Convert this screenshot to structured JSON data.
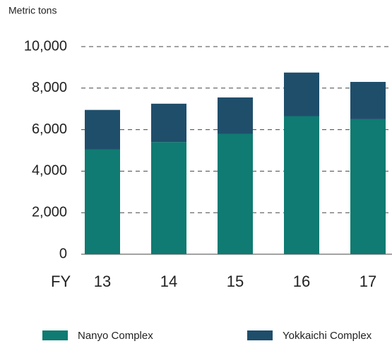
{
  "chart_data": {
    "type": "stacked_bar",
    "ylabel": "Metric tons",
    "xlabel": "FY",
    "categories": [
      "13",
      "14",
      "15",
      "16",
      "17"
    ],
    "series": [
      {
        "name": "Nanyo Complex",
        "color": "#0f7b72",
        "values": [
          5050,
          5400,
          5800,
          6650,
          6500
        ]
      },
      {
        "name": "Yokkaichi Complex",
        "color": "#1f4e6b",
        "values": [
          1900,
          1850,
          1750,
          2100,
          1800
        ]
      }
    ],
    "ylim": [
      0,
      10000
    ],
    "yticks": [
      0,
      {
        "value": 2000,
        "label": "2,000"
      },
      {
        "value": 4000,
        "label": "4,000"
      },
      {
        "value": 6000,
        "label": "6,000"
      },
      {
        "value": 8000,
        "label": "8,000"
      },
      {
        "value": 10000,
        "label": "10,000"
      }
    ],
    "grid": true
  }
}
